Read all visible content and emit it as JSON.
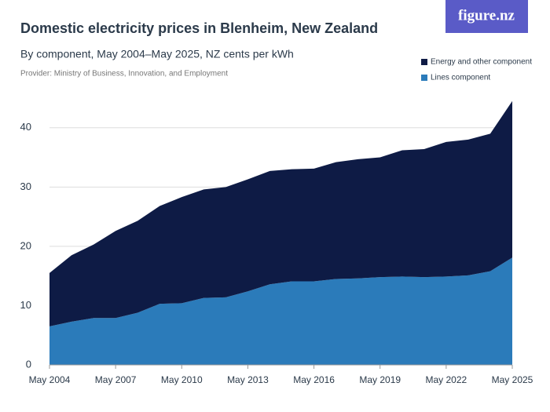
{
  "chart_data": {
    "type": "stacked-area",
    "title": "Domestic electricity prices in Blenheim, New Zealand",
    "subtitle": "By component, May 2004–May 2025, NZ cents per kWh",
    "source": "Provider: Ministry of Business, Innovation, and Employment",
    "logo": "figure.nz",
    "x": [
      2004,
      2005,
      2006,
      2007,
      2008,
      2009,
      2010,
      2011,
      2012,
      2013,
      2014,
      2015,
      2016,
      2017,
      2018,
      2019,
      2020,
      2021,
      2022,
      2023,
      2024,
      2025
    ],
    "xlim": [
      2004,
      2025
    ],
    "xticks": [
      {
        "value": 2004,
        "label": "May 2004"
      },
      {
        "value": 2007,
        "label": "May 2007"
      },
      {
        "value": 2010,
        "label": "May 2010"
      },
      {
        "value": 2013,
        "label": "May 2013"
      },
      {
        "value": 2016,
        "label": "May 2016"
      },
      {
        "value": 2019,
        "label": "May 2019"
      },
      {
        "value": 2022,
        "label": "May 2022"
      },
      {
        "value": 2025,
        "label": "May 2025"
      }
    ],
    "ylim": [
      0,
      45
    ],
    "yticks": [
      0,
      10,
      20,
      30,
      40
    ],
    "grid": true,
    "series": [
      {
        "name": "Lines component",
        "color": "#2b7bba",
        "values": [
          6.5,
          7.3,
          7.9,
          7.9,
          8.8,
          10.3,
          10.4,
          11.3,
          11.4,
          12.4,
          13.6,
          14.1,
          14.1,
          14.5,
          14.6,
          14.8,
          14.9,
          14.8,
          14.9,
          15.1,
          15.8,
          18.1
        ]
      },
      {
        "name": "Energy and other component",
        "color": "#0e1b45",
        "values": [
          9.0,
          11.2,
          12.4,
          14.7,
          15.5,
          16.5,
          17.9,
          18.3,
          18.6,
          18.9,
          19.1,
          18.9,
          19.0,
          19.7,
          20.1,
          20.2,
          21.3,
          21.6,
          22.7,
          22.9,
          23.2,
          26.4
        ]
      }
    ]
  }
}
